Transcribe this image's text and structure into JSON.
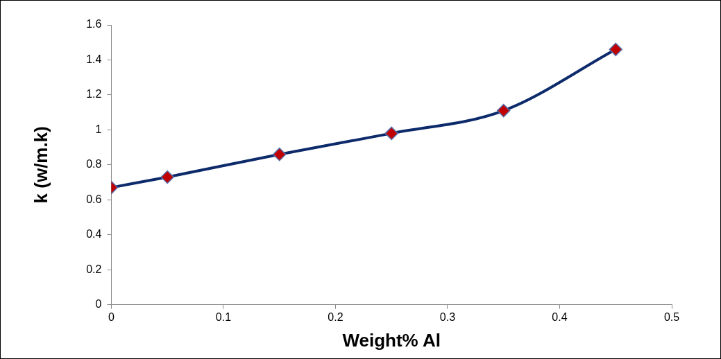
{
  "chart_data": {
    "type": "line",
    "xlabel": "Weight% Al",
    "ylabel": "k (w/m.k)",
    "x": [
      0,
      0.05,
      0.15,
      0.25,
      0.35,
      0.45
    ],
    "series": [
      {
        "color": "#0d2a6b",
        "values": [
          0.67,
          0.73,
          0.86,
          0.98,
          1.11,
          1.46
        ]
      }
    ],
    "marker": "diamond",
    "line_style": "solid",
    "xlim": [
      0,
      0.5
    ],
    "xticks": [
      0,
      0.1,
      0.2,
      0.3,
      0.4,
      0.5
    ],
    "ylim": [
      0,
      1.6
    ],
    "yticks": [
      0,
      0.2,
      0.4,
      0.6,
      0.8,
      1,
      1.2,
      1.4,
      1.6
    ],
    "grid": false,
    "legend": false
  }
}
